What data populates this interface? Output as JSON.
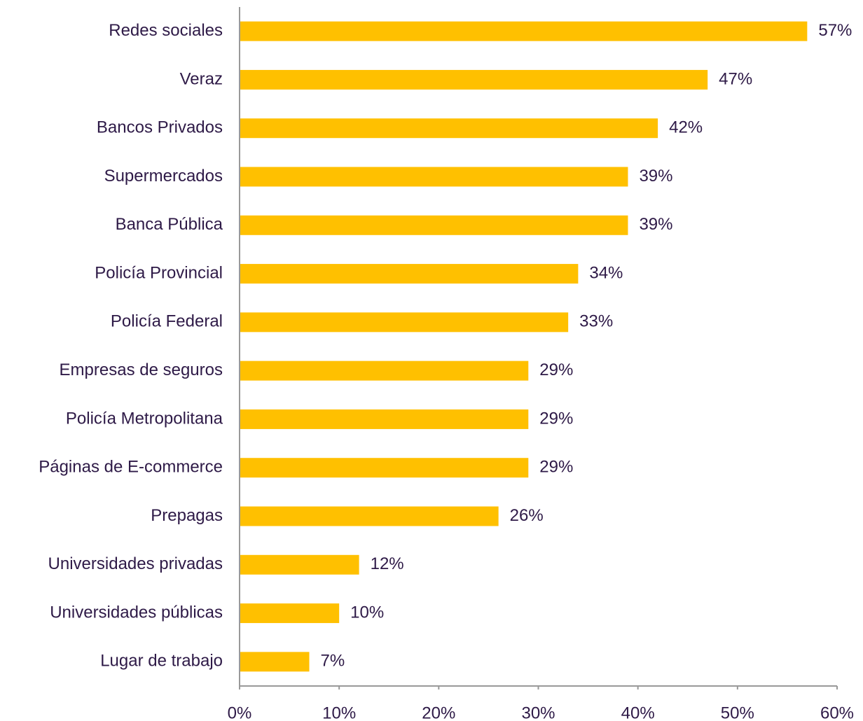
{
  "chart_data": {
    "type": "bar",
    "categories": [
      "Redes sociales",
      "Veraz",
      "Bancos Privados",
      "Supermercados",
      "Banca Pública",
      "Policía Provincial",
      "Policía Federal",
      "Empresas de seguros",
      "Policía Metropolitana",
      "Páginas de E-commerce",
      "Prepagas",
      "Universidades privadas",
      "Universidades públicas",
      "Lugar de trabajo"
    ],
    "values": [
      57,
      47,
      42,
      39,
      39,
      34,
      33,
      29,
      29,
      29,
      26,
      12,
      10,
      7
    ],
    "value_labels": [
      "57%",
      "47%",
      "42%",
      "39%",
      "39%",
      "34%",
      "33%",
      "29%",
      "29%",
      "29%",
      "26%",
      "12%",
      "10%",
      "7%"
    ],
    "color": "#ffc000",
    "xlim": [
      0,
      60
    ],
    "xticks": [
      {
        "value": 0,
        "label": "0%"
      },
      {
        "value": 10,
        "label": "10%"
      },
      {
        "value": 20,
        "label": "20%"
      },
      {
        "value": 30,
        "label": "30%"
      },
      {
        "value": 40,
        "label": "40%"
      },
      {
        "value": 50,
        "label": "50%"
      },
      {
        "value": 60,
        "label": "60%"
      }
    ]
  }
}
